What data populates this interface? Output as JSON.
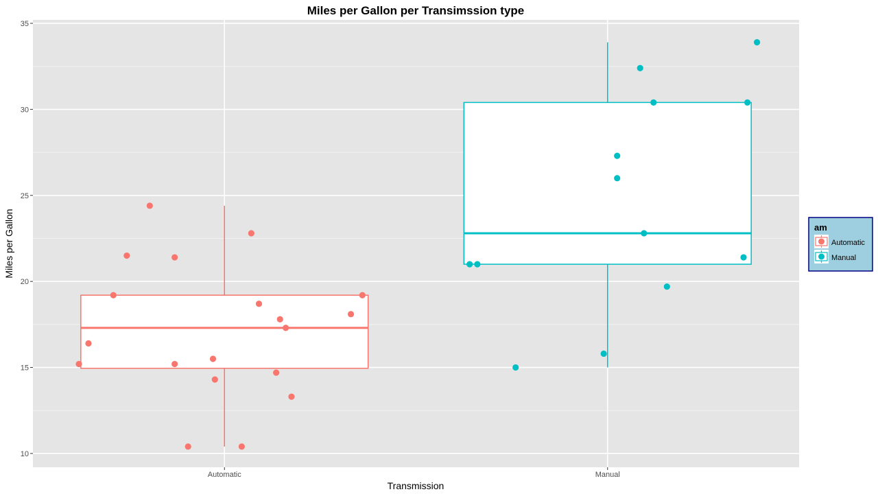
{
  "colors": {
    "panel_background": "#e5e5e5",
    "grid_major": "#ffffff",
    "grid_minor": "#f2f2f2",
    "automatic": "#f8766d",
    "manual": "#00bfc4",
    "legend_fill": "#9ecfe0",
    "legend_border": "#000080"
  },
  "chart_data": {
    "type": "box",
    "title": "Miles per Gallon per Transimssion type",
    "xlabel": "Transmission",
    "ylabel": "Miles per Gallon",
    "categories": [
      "Automatic",
      "Manual"
    ],
    "ylim": [
      9.2,
      35.2
    ],
    "yticks": [
      10,
      15,
      20,
      25,
      30,
      35
    ],
    "grid": true,
    "legend": {
      "title": "am",
      "position": "right",
      "entries": [
        "Automatic",
        "Manual"
      ]
    },
    "series": [
      {
        "name": "Automatic",
        "box": {
          "min": 10.4,
          "q1": 14.95,
          "median": 17.3,
          "q3": 19.2,
          "max": 24.4
        },
        "points": [
          {
            "jitter": -0.38,
            "y": 15.2
          },
          {
            "jitter": -0.355,
            "y": 16.4
          },
          {
            "jitter": -0.29,
            "y": 19.2
          },
          {
            "jitter": -0.255,
            "y": 21.5
          },
          {
            "jitter": -0.195,
            "y": 24.4
          },
          {
            "jitter": -0.13,
            "y": 21.4
          },
          {
            "jitter": -0.13,
            "y": 15.2
          },
          {
            "jitter": -0.095,
            "y": 10.4
          },
          {
            "jitter": -0.03,
            "y": 15.5
          },
          {
            "jitter": -0.025,
            "y": 14.3
          },
          {
            "jitter": 0.045,
            "y": 10.4
          },
          {
            "jitter": 0.07,
            "y": 22.8
          },
          {
            "jitter": 0.09,
            "y": 18.7
          },
          {
            "jitter": 0.135,
            "y": 14.7
          },
          {
            "jitter": 0.145,
            "y": 17.8
          },
          {
            "jitter": 0.16,
            "y": 17.3
          },
          {
            "jitter": 0.175,
            "y": 13.3
          },
          {
            "jitter": 0.33,
            "y": 18.1
          },
          {
            "jitter": 0.36,
            "y": 19.2
          }
        ]
      },
      {
        "name": "Manual",
        "box": {
          "min": 15.0,
          "q1": 21.0,
          "median": 22.8,
          "q3": 30.4,
          "max": 33.9
        },
        "points": [
          {
            "jitter": -0.36,
            "y": 21.0
          },
          {
            "jitter": -0.34,
            "y": 21.0
          },
          {
            "jitter": -0.24,
            "y": 15.0
          },
          {
            "jitter": -0.01,
            "y": 15.8
          },
          {
            "jitter": 0.025,
            "y": 26.0
          },
          {
            "jitter": 0.025,
            "y": 27.3
          },
          {
            "jitter": 0.085,
            "y": 32.4
          },
          {
            "jitter": 0.095,
            "y": 22.8
          },
          {
            "jitter": 0.12,
            "y": 30.4
          },
          {
            "jitter": 0.155,
            "y": 19.7
          },
          {
            "jitter": 0.355,
            "y": 21.4
          },
          {
            "jitter": 0.365,
            "y": 30.4
          },
          {
            "jitter": 0.39,
            "y": 33.9
          }
        ]
      }
    ]
  }
}
